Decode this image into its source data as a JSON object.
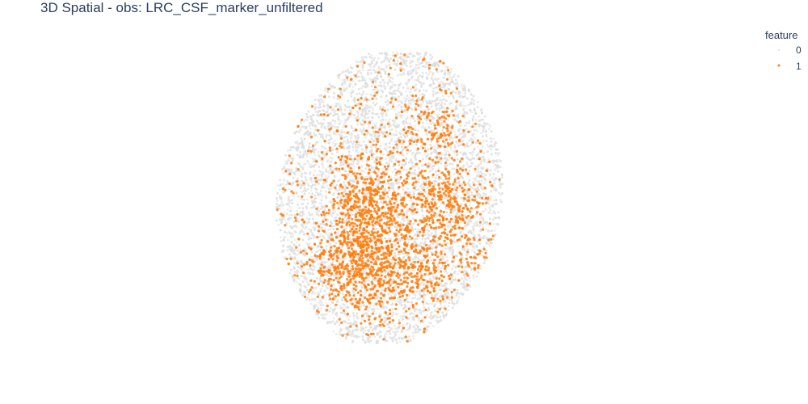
{
  "chart_data": {
    "type": "scatter",
    "title": "3D Spatial - obs: LRC_CSF_marker_unfiltered",
    "legend": {
      "title": "feature",
      "placement": "top-right",
      "entries": [
        {
          "label": "0",
          "color": "#dcdcdc"
        },
        {
          "label": "1",
          "color": "#ff7f0e"
        }
      ]
    },
    "series": [
      {
        "name": "0",
        "color": "#dcdcdc",
        "approx_count": 9000
      },
      {
        "name": "1",
        "color": "#ff7f0e",
        "approx_count": 2500
      }
    ],
    "grid": false,
    "axes_visible": false
  }
}
